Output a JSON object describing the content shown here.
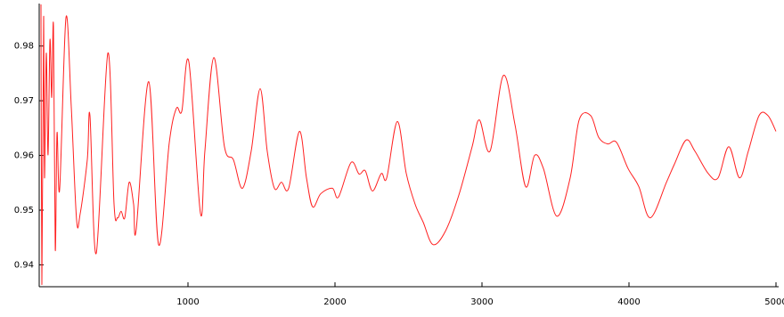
{
  "chart_data": {
    "type": "line",
    "x": [
      0,
      6,
      18,
      24,
      36,
      48,
      61,
      73,
      85,
      97,
      109,
      127,
      170,
      206,
      242,
      267,
      315,
      333,
      376,
      455,
      497,
      521,
      545,
      570,
      600,
      630,
      648,
      733,
      800,
      873,
      921,
      958,
      1006,
      1085,
      1115,
      1176,
      1248,
      1309,
      1370,
      1430,
      1491,
      1539,
      1588,
      1636,
      1685,
      1758,
      1806,
      1848,
      1903,
      1982,
      2024,
      2109,
      2164,
      2206,
      2255,
      2315,
      2352,
      2424,
      2485,
      2545,
      2600,
      2667,
      2752,
      2842,
      2933,
      2982,
      3055,
      3145,
      3224,
      3297,
      3358,
      3418,
      3509,
      3600,
      3661,
      3739,
      3794,
      3855,
      3915,
      3994,
      4067,
      4145,
      4255,
      4309,
      4388,
      4448,
      4539,
      4606,
      4679,
      4752,
      4812,
      4885,
      4945,
      5000
    ],
    "series": [
      {
        "color": "#ff2020",
        "values": [
          0.9876,
          0.9364,
          0.9852,
          0.9559,
          0.9787,
          0.9601,
          0.9811,
          0.9706,
          0.9836,
          0.9429,
          0.9641,
          0.9538,
          0.9852,
          0.9689,
          0.9483,
          0.9494,
          0.9592,
          0.9673,
          0.9421,
          0.9787,
          0.9511,
          0.9486,
          0.9498,
          0.9486,
          0.9551,
          0.9511,
          0.9465,
          0.9735,
          0.9437,
          0.9624,
          0.9686,
          0.9681,
          0.9771,
          0.9494,
          0.9608,
          0.9779,
          0.9616,
          0.9592,
          0.954,
          0.9608,
          0.9722,
          0.9608,
          0.954,
          0.9551,
          0.954,
          0.9644,
          0.9559,
          0.9506,
          0.953,
          0.954,
          0.9524,
          0.9587,
          0.9566,
          0.9572,
          0.9535,
          0.9567,
          0.9559,
          0.9662,
          0.9567,
          0.9511,
          0.9478,
          0.9437,
          0.9462,
          0.9527,
          0.9616,
          0.9665,
          0.9608,
          0.9746,
          0.9657,
          0.9543,
          0.96,
          0.9576,
          0.9489,
          0.9559,
          0.9665,
          0.9673,
          0.9633,
          0.9621,
          0.9624,
          0.9576,
          0.9543,
          0.9486,
          0.9551,
          0.9584,
          0.9628,
          0.9608,
          0.9567,
          0.9559,
          0.9616,
          0.9559,
          0.9608,
          0.9673,
          0.9673,
          0.9644
        ]
      }
    ],
    "xlim": [
      0,
      5000
    ],
    "xticks": [
      1000,
      2000,
      3000,
      4000,
      5000
    ],
    "ylim": [
      0.936,
      0.9876
    ],
    "yticks": [
      0.94,
      0.95,
      0.96,
      0.97,
      0.98
    ]
  }
}
